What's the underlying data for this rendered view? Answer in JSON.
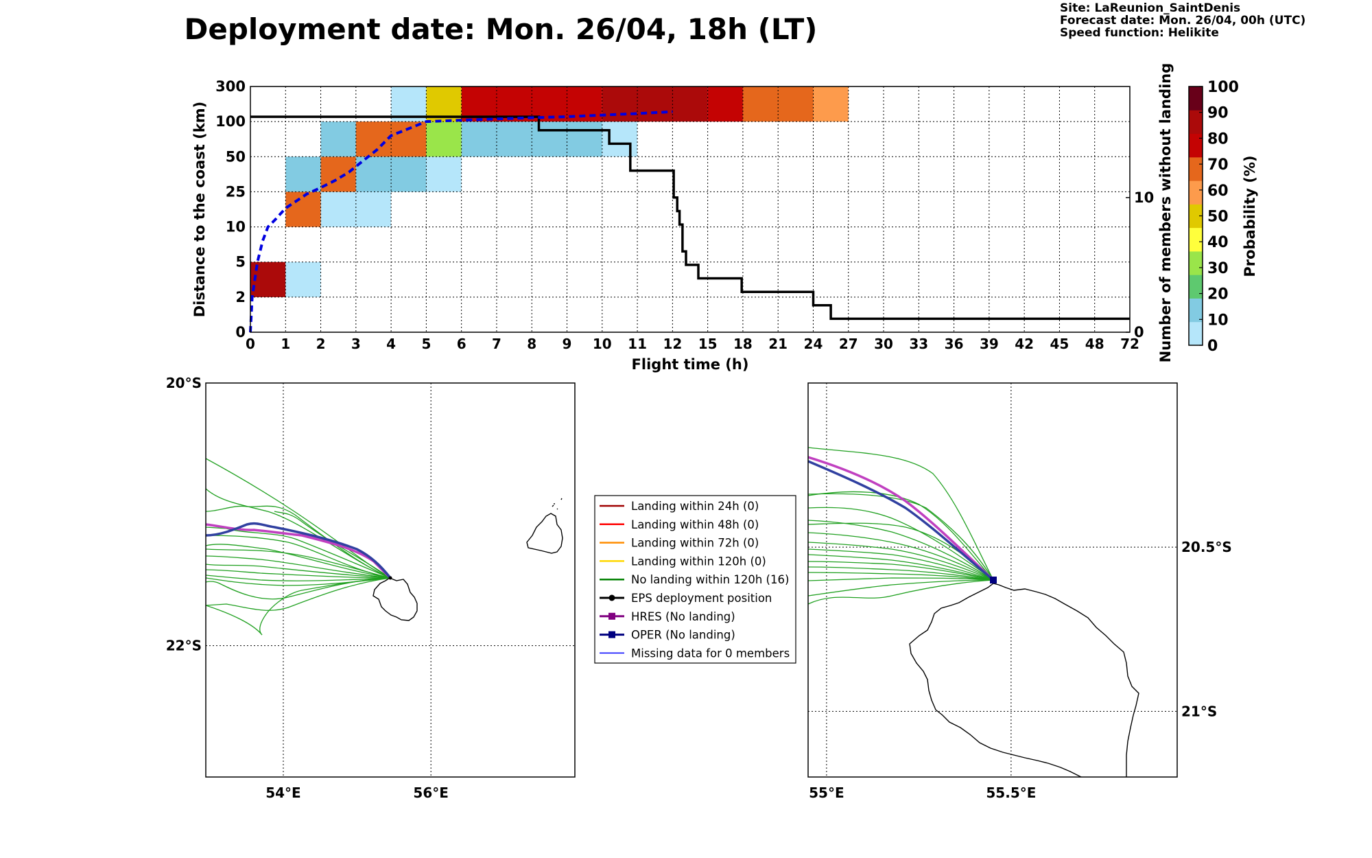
{
  "header": {
    "title": "Deployment date: Mon. 26/04, 18h (LT)",
    "site": "Site: LaReunion_SaintDenis",
    "forecast_date": "Forecast date: Mon. 26/04, 00h (UTC)",
    "speed_function": "Speed function: Helikite"
  },
  "chart_data": [
    {
      "type": "heatmap",
      "title": "Deployment date: Mon. 26/04, 18h (LT)",
      "xlabel": "Flight time (h)",
      "ylabel": "Distance to the coast (km)",
      "y2label": "Number of members without landing",
      "x_ticks": [
        "0",
        "1",
        "2",
        "3",
        "4",
        "5",
        "6",
        "7",
        "8",
        "9",
        "10",
        "11",
        "12",
        "15",
        "18",
        "21",
        "24",
        "27",
        "30",
        "33",
        "36",
        "39",
        "42",
        "45",
        "48",
        "72"
      ],
      "y_ticks": [
        "0",
        "2",
        "5",
        "10",
        "25",
        "50",
        "100",
        "300"
      ],
      "y2_ticks": [
        {
          "label": "0",
          "value": 0
        },
        {
          "label": "10",
          "value": 10
        }
      ],
      "y2_range": [
        0,
        18.25
      ],
      "colorbar": {
        "label": "Probability (%)",
        "ticks": [
          "0",
          "10",
          "20",
          "30",
          "40",
          "50",
          "60",
          "70",
          "80",
          "90",
          "100"
        ],
        "colors": [
          "#b5e6fa",
          "#82cbe2",
          "#5ec96f",
          "#9ae54a",
          "#ffff3c",
          "#e0c900",
          "#fd9b4c",
          "#e5671c",
          "#c40303",
          "#ab0a0a",
          "#680019"
        ]
      },
      "cells": [
        {
          "x": [
            0,
            1
          ],
          "y": [
            2,
            5
          ],
          "p": 95
        },
        {
          "x": [
            1,
            2
          ],
          "y": [
            2,
            5
          ],
          "p": 5
        },
        {
          "x": [
            1,
            2
          ],
          "y": [
            10,
            25
          ],
          "p": 75
        },
        {
          "x": [
            2,
            4
          ],
          "y": [
            10,
            25
          ],
          "p": 5
        },
        {
          "x": [
            1,
            2
          ],
          "y": [
            25,
            50
          ],
          "p": 15
        },
        {
          "x": [
            2,
            3
          ],
          "y": [
            25,
            50
          ],
          "p": 75
        },
        {
          "x": [
            3,
            5
          ],
          "y": [
            25,
            50
          ],
          "p": 15
        },
        {
          "x": [
            5,
            6
          ],
          "y": [
            25,
            50
          ],
          "p": 5
        },
        {
          "x": [
            2,
            3
          ],
          "y": [
            50,
            100
          ],
          "p": 15
        },
        {
          "x": [
            3,
            5
          ],
          "y": [
            50,
            100
          ],
          "p": 75
        },
        {
          "x": [
            5,
            6
          ],
          "y": [
            50,
            100
          ],
          "p": 35
        },
        {
          "x": [
            6,
            10
          ],
          "y": [
            50,
            100
          ],
          "p": 15
        },
        {
          "x": [
            10,
            11
          ],
          "y": [
            50,
            100
          ],
          "p": 5
        },
        {
          "x": [
            4,
            5
          ],
          "y": [
            100,
            300
          ],
          "p": 5
        },
        {
          "x": [
            5,
            6
          ],
          "y": [
            100,
            300
          ],
          "p": 55
        },
        {
          "x": [
            6,
            10
          ],
          "y": [
            100,
            300
          ],
          "p": 85
        },
        {
          "x": [
            10,
            15
          ],
          "y": [
            100,
            300
          ],
          "p": 95
        },
        {
          "x": [
            15,
            18
          ],
          "y": [
            100,
            300
          ],
          "p": 85
        },
        {
          "x": [
            18,
            24
          ],
          "y": [
            100,
            300
          ],
          "p": 75
        },
        {
          "x": [
            24,
            27
          ],
          "y": [
            100,
            300
          ],
          "p": 65
        }
      ],
      "series": [
        {
          "name": "",
          "axis": "y2",
          "style": "black-step",
          "x": [
            "0",
            "8.2",
            "8.2",
            "10.2",
            "10.2",
            "10.8",
            "10.8",
            "12.1",
            "12.1",
            "12.4",
            "12.4",
            "12.6",
            "12.6",
            "12.85",
            "12.85",
            "13.15",
            "13.15",
            "14.2",
            "14.2",
            "17.9",
            "17.9",
            "24.0",
            "24.0",
            "25.5",
            "25.5",
            "28.0",
            "28.0",
            "72"
          ],
          "y": [
            16,
            16,
            15,
            15,
            14,
            14,
            12,
            12,
            10,
            10,
            9,
            9,
            8,
            8,
            6,
            6,
            5,
            5,
            4,
            4,
            3,
            3,
            2,
            2,
            1,
            1,
            1,
            1
          ]
        },
        {
          "name": "",
          "axis": "y",
          "style": "blue-dashed",
          "x": [
            "0",
            "0.05",
            "0.2",
            "0.35",
            "0.5",
            "0.7",
            "1",
            "1.3",
            "1.6",
            "2",
            "2.4",
            "2.8",
            "3.2",
            "3.6",
            "4",
            "4.5",
            "5",
            "6",
            "7",
            "8",
            "9",
            "10",
            "11",
            "12"
          ],
          "y": [
            "0",
            "2",
            "5",
            "8",
            "10",
            "13",
            "18",
            "21",
            "24",
            "28",
            "33",
            "39",
            "47",
            "60",
            "80",
            "90",
            "100",
            "108",
            "115",
            "122",
            "128",
            "137",
            "146",
            "156"
          ]
        }
      ]
    },
    {
      "type": "map",
      "lon_ticks": [
        {
          "label": "54°E",
          "value": 54
        },
        {
          "label": "56°E",
          "value": 56
        }
      ],
      "lat_ticks": [
        {
          "label": "20°S",
          "value": -20
        },
        {
          "label": "22°S",
          "value": -22
        }
      ],
      "lon_range": [
        52.95,
        57.95
      ],
      "lat_range": [
        -20.0,
        -23.0
      ]
    },
    {
      "type": "map",
      "lon_ticks": [
        {
          "label": "55°E",
          "value": 55
        },
        {
          "label": "55.5°E",
          "value": 55.5
        }
      ],
      "lat_ticks": [
        {
          "label": "20.5°S",
          "value": -20.5
        },
        {
          "label": "21°S",
          "value": -21
        }
      ],
      "lon_range": [
        54.95,
        55.95
      ],
      "lat_range": [
        -20.0,
        -21.2
      ]
    }
  ],
  "legend": {
    "placement": "center",
    "items": [
      {
        "label": "Landing within 24h (0)",
        "color": "#a00000",
        "style": "line"
      },
      {
        "label": "Landing within 48h (0)",
        "color": "#ff0000",
        "style": "line"
      },
      {
        "label": "Landing within 72h (0)",
        "color": "#ff8c00",
        "style": "line"
      },
      {
        "label": "Landing within 120h (0)",
        "color": "#ffd700",
        "style": "line"
      },
      {
        "label": "No landing within 120h (16)",
        "color": "#008000",
        "style": "line"
      },
      {
        "label": "EPS deployment position",
        "color": "#000000",
        "style": "line-dot"
      },
      {
        "label": "HRES (No landing)",
        "color": "#800080",
        "style": "line-square"
      },
      {
        "label": "OPER (No landing)",
        "color": "#000080",
        "style": "line-square"
      },
      {
        "label": "Missing data for 0 members",
        "color": "#0000ff",
        "style": "thin-line"
      }
    ]
  }
}
